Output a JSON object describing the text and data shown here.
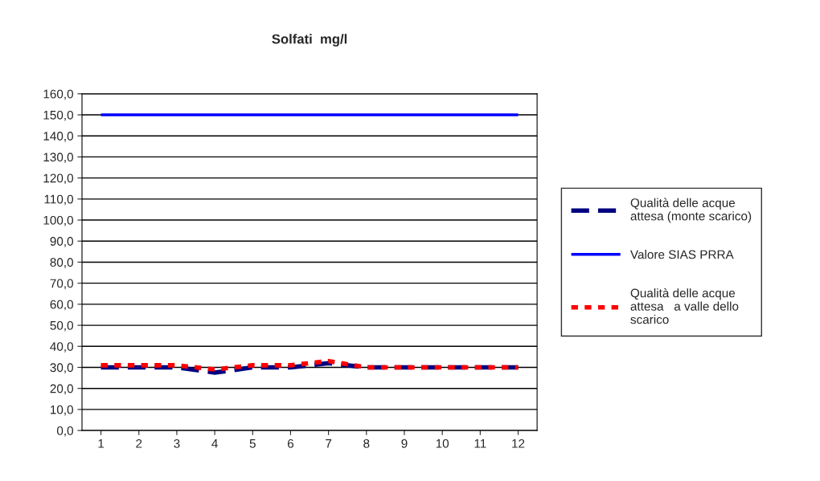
{
  "chart_data": {
    "type": "line",
    "title": "Solfati  mg/l",
    "categories": [
      "1",
      "2",
      "3",
      "4",
      "5",
      "6",
      "7",
      "8",
      "9",
      "10",
      "11",
      "12"
    ],
    "series": [
      {
        "name": "Qualità delle acque\nattesa (monte scarico)",
        "color": "#000080",
        "line_style": "dashed",
        "values": [
          30,
          30,
          30,
          27.5,
          30,
          30,
          32,
          30,
          30,
          30,
          30,
          30
        ]
      },
      {
        "name": "Valore SIAS PRRA",
        "color": "#0000ff",
        "line_style": "solid",
        "values": [
          150,
          150,
          150,
          150,
          150,
          150,
          150,
          150,
          150,
          150,
          150,
          150
        ]
      },
      {
        "name": "Qualità delle acque\nattesa   a valle dello\nscarico",
        "color": "#ff0000",
        "line_style": "dotted",
        "values": [
          31,
          31,
          31,
          29,
          31,
          31,
          33,
          30,
          30,
          30,
          30,
          30
        ]
      }
    ],
    "ylim": [
      0,
      160
    ],
    "yticks": [
      {
        "value": 0,
        "label": "0,0"
      },
      {
        "value": 10,
        "label": "10,0"
      },
      {
        "value": 20,
        "label": "20,0"
      },
      {
        "value": 30,
        "label": "30,0"
      },
      {
        "value": 40,
        "label": "40,0"
      },
      {
        "value": 50,
        "label": "50,0"
      },
      {
        "value": 60,
        "label": "60,0"
      },
      {
        "value": 70,
        "label": "70,0"
      },
      {
        "value": 80,
        "label": "80,0"
      },
      {
        "value": 90,
        "label": "90,0"
      },
      {
        "value": 100,
        "label": "100,0"
      },
      {
        "value": 110,
        "label": "110,0"
      },
      {
        "value": 120,
        "label": "120,0"
      },
      {
        "value": 130,
        "label": "130,0"
      },
      {
        "value": 140,
        "label": "140,0"
      },
      {
        "value": 150,
        "label": "150,0"
      },
      {
        "value": 160,
        "label": "160,0"
      }
    ],
    "grid": "y",
    "legend": "right",
    "marker": "none"
  }
}
